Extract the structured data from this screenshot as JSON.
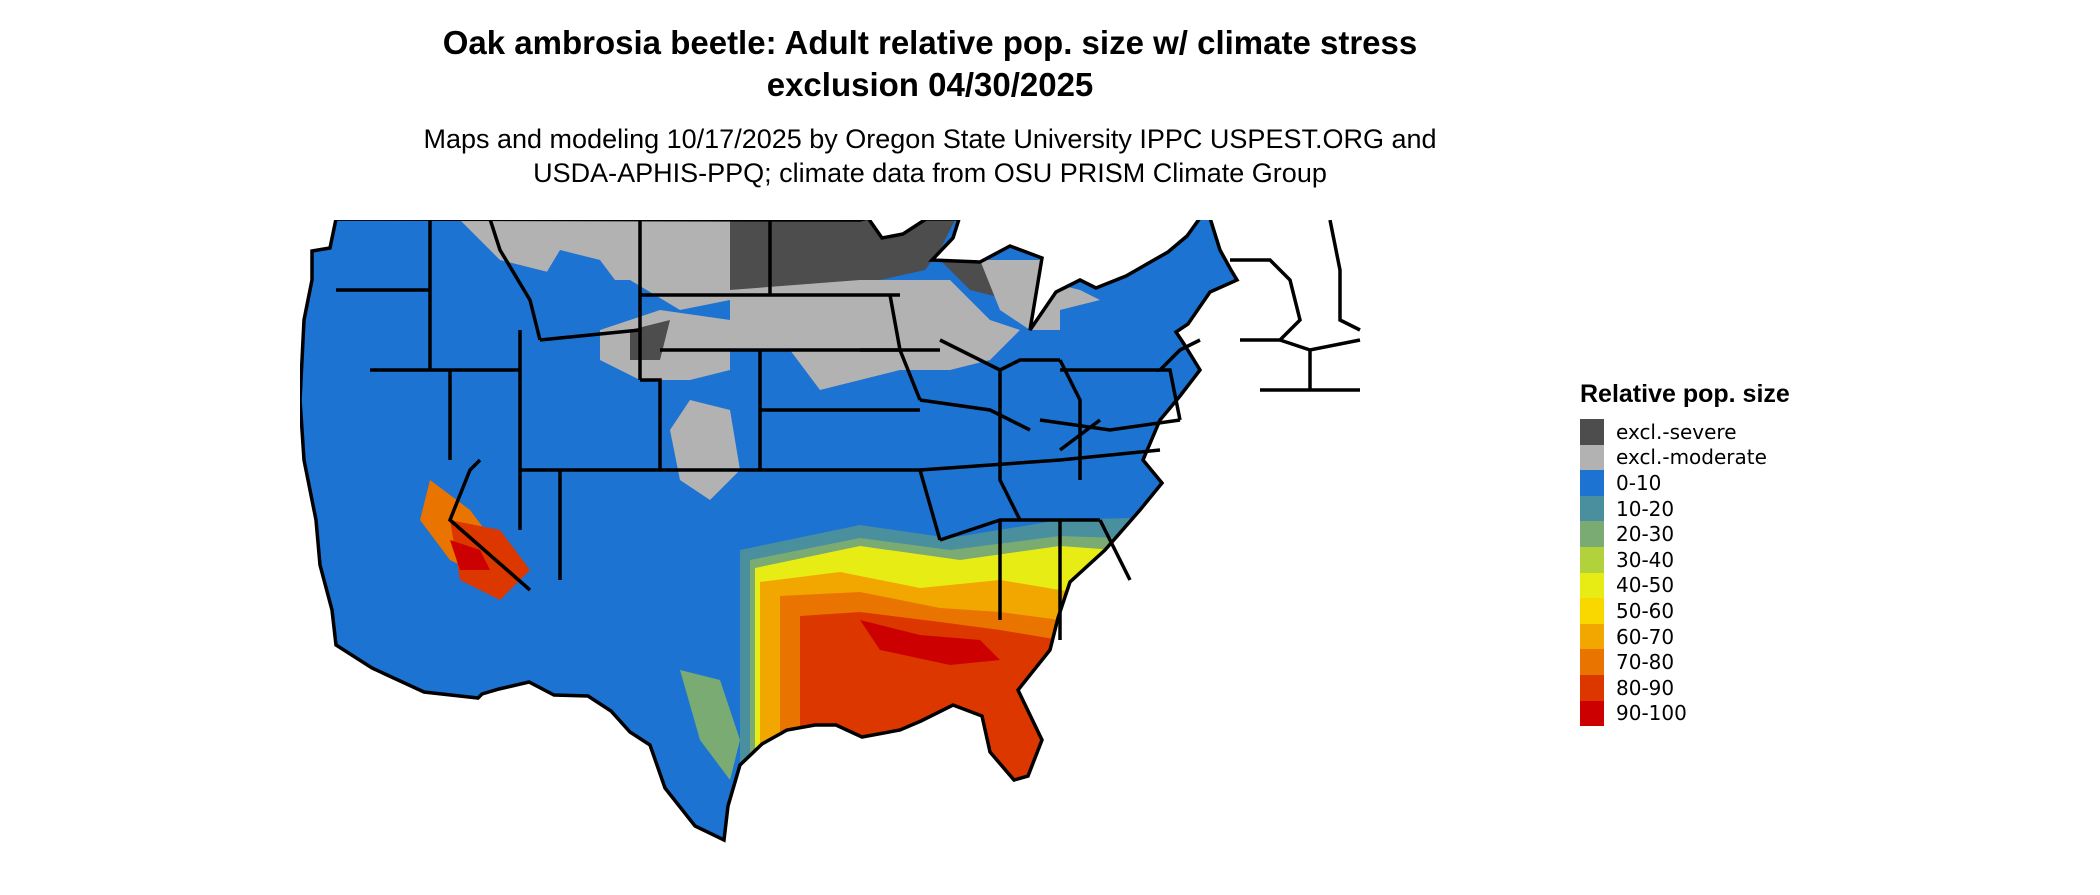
{
  "title_line1": "Oak ambrosia beetle: Adult relative pop. size w/ climate stress",
  "title_line2": "exclusion 04/30/2025",
  "subtitle_line1": "Maps and modeling 10/17/2025 by Oregon State University IPPC USPEST.ORG and",
  "subtitle_line2": "USDA-APHIS-PPQ; climate data from OSU PRISM Climate Group",
  "legend": {
    "title": "Relative pop. size",
    "items": [
      {
        "label": "excl.-severe",
        "color": "#4d4d4d"
      },
      {
        "label": "excl.-moderate",
        "color": "#b2b2b2"
      },
      {
        "label": "0-10",
        "color": "#1c73d1"
      },
      {
        "label": "10-20",
        "color": "#4a8f9e"
      },
      {
        "label": "20-30",
        "color": "#79ab72"
      },
      {
        "label": "30-40",
        "color": "#b2d23c"
      },
      {
        "label": "40-50",
        "color": "#e8ec15"
      },
      {
        "label": "50-60",
        "color": "#f9d800"
      },
      {
        "label": "60-70",
        "color": "#f2a600"
      },
      {
        "label": "70-80",
        "color": "#ea7400"
      },
      {
        "label": "80-90",
        "color": "#dd3700"
      },
      {
        "label": "90-100",
        "color": "#cc0000"
      }
    ]
  }
}
